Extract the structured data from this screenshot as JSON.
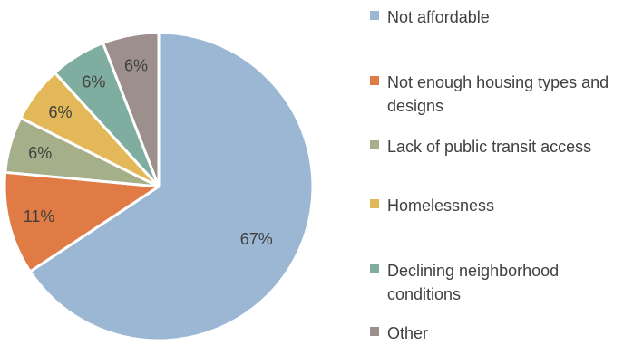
{
  "chart_data": {
    "type": "pie",
    "title": "",
    "categories": [
      "Not affordable",
      "Not enough housing types and designs",
      "Lack of public transit access",
      "Homelessness",
      "Declining neighborhood conditions",
      "Other"
    ],
    "values": [
      67,
      11,
      6,
      6,
      6,
      6
    ],
    "labels": [
      "67%",
      "11%",
      "6%",
      "6%",
      "6%",
      "6%"
    ],
    "colors": [
      "#9bb7d4",
      "#e07b45",
      "#a5b08a",
      "#e3b858",
      "#7fada0",
      "#9c8f8c"
    ],
    "start_angle_deg": 0,
    "direction": "clockwise",
    "legend_position": "right"
  }
}
